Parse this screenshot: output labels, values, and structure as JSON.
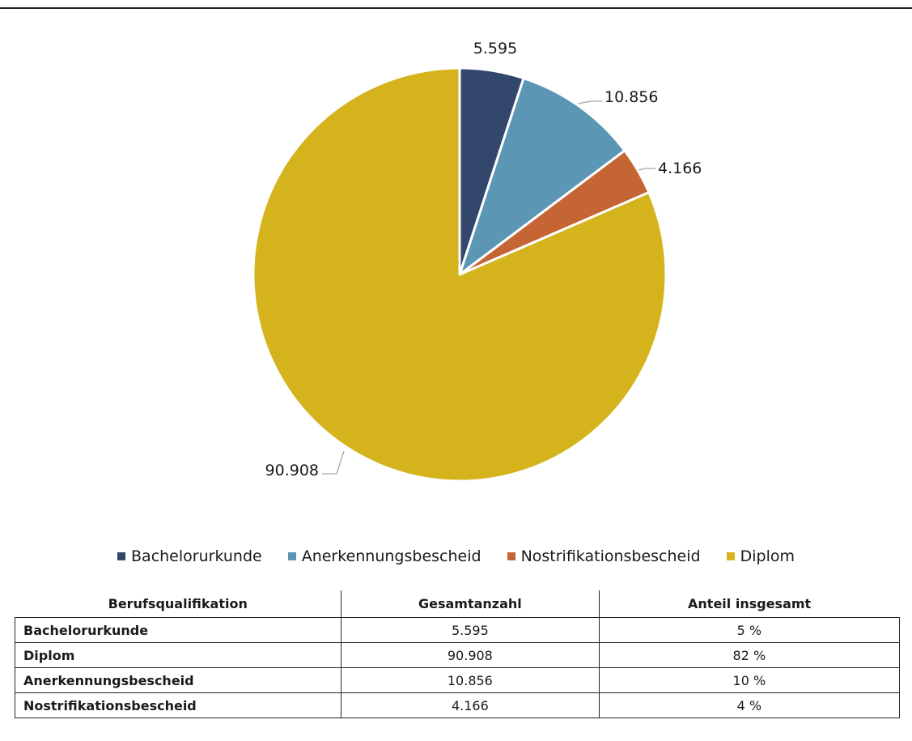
{
  "chart_data": {
    "type": "pie",
    "series": [
      {
        "name": "Bachelorurkunde",
        "value": 5595,
        "label": "5.595",
        "color": "#33466c"
      },
      {
        "name": "Anerkennungsbescheid",
        "value": 10856,
        "label": "10.856",
        "color": "#5b97b4"
      },
      {
        "name": "Nostrifikationsbescheid",
        "value": 4166,
        "label": "4.166",
        "color": "#c56534"
      },
      {
        "name": "Diplom",
        "value": 90908,
        "label": "90.908",
        "color": "#d5b31d"
      }
    ],
    "legend_position": "bottom"
  },
  "table": {
    "headers": [
      "Berufsqualifikation",
      "Gesamtanzahl",
      "Anteil insgesamt"
    ],
    "rows": [
      {
        "name": "Bachelorurkunde",
        "count": "5.595",
        "share": "5 %"
      },
      {
        "name": "Diplom",
        "count": "90.908",
        "share": "82 %"
      },
      {
        "name": "Anerkennungsbescheid",
        "count": "10.856",
        "share": "10 %"
      },
      {
        "name": "Nostrifikationsbescheid",
        "count": "4.166",
        "share": "4 %"
      }
    ]
  }
}
